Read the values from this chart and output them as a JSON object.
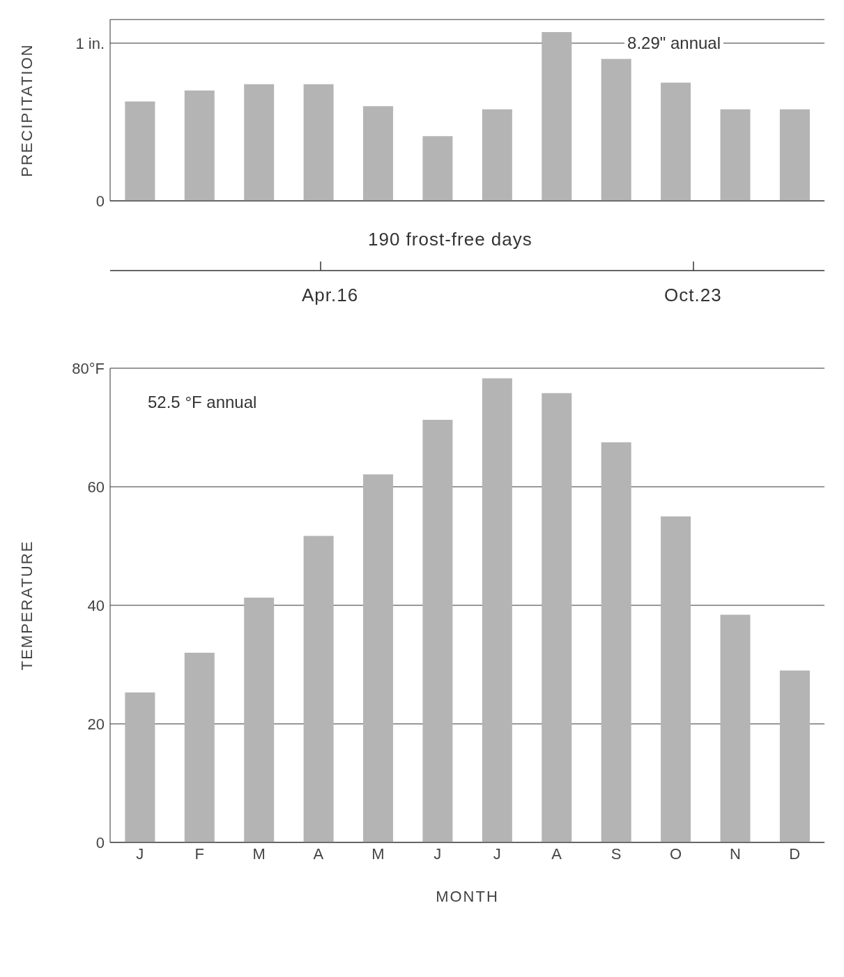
{
  "chart_data": [
    {
      "type": "bar",
      "ylabel": "PRECIPITATION",
      "categories": [
        null,
        null,
        null,
        null,
        null,
        null,
        null,
        null,
        null,
        null,
        null,
        null
      ],
      "values": [
        0.63,
        0.7,
        0.74,
        0.74,
        0.6,
        0.41,
        0.58,
        1.07,
        0.9,
        0.75,
        0.58,
        0.58
      ],
      "color": "#b4b4b4",
      "ylim": [
        0,
        1.15
      ],
      "yticks": [
        0,
        {
          "value": 1,
          "label": "1 in."
        }
      ],
      "grid": "y",
      "tick_labels": "y",
      "annotations": [
        "8.29\" annual"
      ]
    },
    {
      "type": "other",
      "annotations": [
        "190  frost-free  days",
        "Apr.16",
        "Oct.23"
      ]
    },
    {
      "type": "bar",
      "xlabel": "MONTH",
      "ylabel": "TEMPERATURE",
      "categories": [
        "J",
        "F",
        "M",
        "A",
        "M",
        "J",
        "J",
        "A",
        "S",
        "O",
        "N",
        "D"
      ],
      "values": [
        25.3,
        32,
        41.3,
        51.7,
        62.1,
        71.3,
        78.3,
        75.8,
        67.5,
        55,
        38.4,
        29
      ],
      "color": "#b4b4b4",
      "ylim": [
        0,
        80
      ],
      "yticks": [
        0,
        20,
        40,
        60,
        {
          "value": 80,
          "label": "80°F"
        }
      ],
      "grid": "y",
      "annotations": [
        "52.5 °F annual"
      ]
    }
  ]
}
